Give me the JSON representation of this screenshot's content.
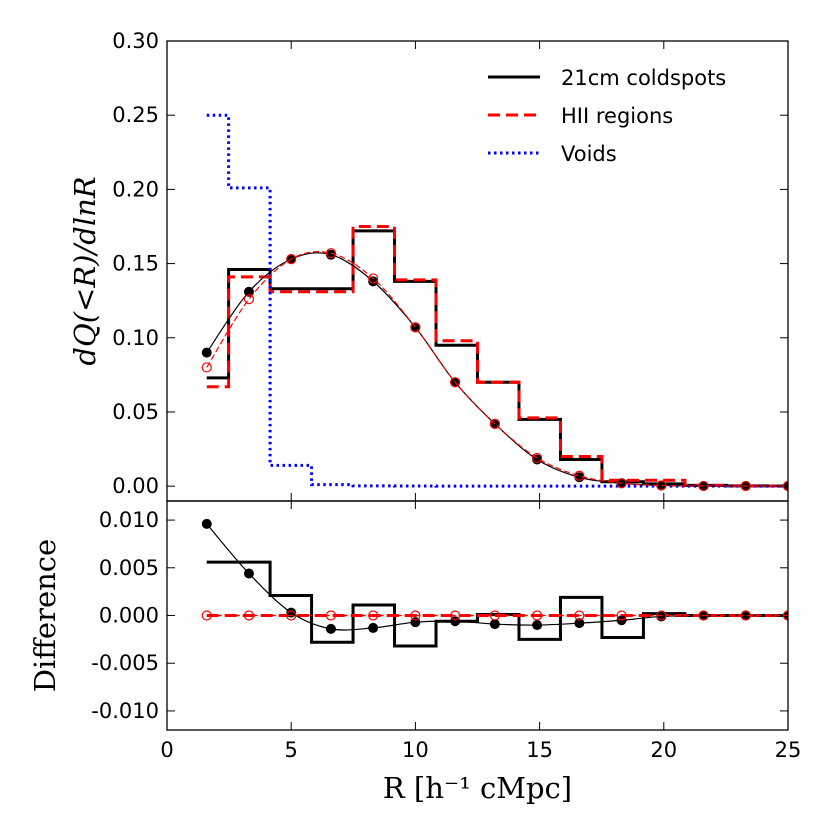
{
  "chart_data": [
    {
      "type": "line",
      "ylabel": "dQ(<R)/dlnR",
      "xlim": [
        0,
        25
      ],
      "ylim": [
        -0.01,
        0.3
      ],
      "yticks": [
        "0.00",
        "0.05",
        "0.10",
        "0.15",
        "0.20",
        "0.25",
        "0.30"
      ],
      "legend": {
        "placement": "top-right"
      },
      "step_series": [
        {
          "name": "21cm coldspots",
          "color": "#000000",
          "style": "solid",
          "edges": [
            1.6,
            2.48,
            4.15,
            5.82,
            7.49,
            9.16,
            10.83,
            12.5,
            14.17,
            15.84,
            17.51,
            19.18,
            20.85,
            22.52,
            24.19,
            25
          ],
          "values": [
            0.073,
            0.146,
            0.133,
            0.133,
            0.172,
            0.138,
            0.095,
            0.07,
            0.045,
            0.018,
            0.003,
            0.0015,
            0.0005,
            0.0002,
            0.0001
          ]
        },
        {
          "name": "HII regions",
          "color": "#ff0000",
          "style": "dashed",
          "edges": [
            1.6,
            2.48,
            4.15,
            5.82,
            7.49,
            9.16,
            10.83,
            12.5,
            14.17,
            15.84,
            17.51,
            19.18,
            20.85,
            22.52,
            24.19,
            25
          ],
          "values": [
            0.067,
            0.141,
            0.131,
            0.131,
            0.175,
            0.139,
            0.098,
            0.07,
            0.046,
            0.02,
            0.004,
            0.004,
            0.0005,
            0.0002,
            0.0001
          ]
        },
        {
          "name": "Voids",
          "color": "#0000ff",
          "style": "dotted",
          "edges": [
            1.6,
            2.48,
            4.15,
            5.82,
            7.49,
            9.16,
            10.83,
            12.5,
            14.17,
            15.84,
            17.51,
            19.18,
            20.85,
            22.52,
            24.19,
            25
          ],
          "values": [
            0.25,
            0.201,
            0.014,
            0.001,
            0.0002,
            0.0001,
            0,
            0,
            0,
            0,
            0,
            0,
            0,
            0,
            0
          ]
        }
      ],
      "point_series": [
        {
          "series": "21cm coldspots",
          "marker": "filled-circle",
          "x": [
            1.6,
            3.3,
            5.0,
            6.6,
            8.3,
            10.0,
            11.6,
            13.2,
            14.9,
            16.6,
            18.3,
            19.9,
            21.6,
            23.3,
            25.0
          ],
          "y": [
            0.09,
            0.131,
            0.153,
            0.156,
            0.138,
            0.107,
            0.07,
            0.042,
            0.018,
            0.006,
            0.002,
            0.0005,
            0.0001,
            0.0001,
            0.0001
          ]
        },
        {
          "series": "HII regions",
          "marker": "open-circle",
          "x": [
            1.6,
            3.3,
            5.0,
            6.6,
            8.3,
            10.0,
            11.6,
            13.2,
            14.9,
            16.6,
            18.3,
            19.9,
            21.6,
            23.3,
            25.0
          ],
          "y": [
            0.08,
            0.126,
            0.153,
            0.157,
            0.14,
            0.107,
            0.07,
            0.042,
            0.019,
            0.007,
            0.002,
            0.0005,
            0.0001,
            0.0001,
            0.0001
          ]
        }
      ]
    },
    {
      "type": "line",
      "xlabel": "R [h⁻¹ cMpc]",
      "ylabel": "Difference",
      "xlim": [
        0,
        25
      ],
      "ylim": [
        -0.012,
        0.012
      ],
      "xticks": [
        "0",
        "5",
        "10",
        "15",
        "20",
        "25"
      ],
      "yticks": [
        "-0.010",
        "-0.005",
        "0.000",
        "0.005",
        "0.010"
      ],
      "step_series": [
        {
          "series": "21cm coldspots",
          "color": "#000000",
          "style": "solid",
          "edges": [
            1.6,
            2.48,
            4.15,
            5.82,
            7.49,
            9.16,
            10.83,
            12.5,
            14.17,
            15.84,
            17.51,
            19.18,
            20.85,
            22.52,
            24.19,
            25
          ],
          "values": [
            0.0056,
            0.0056,
            0.0021,
            -0.0028,
            0.0011,
            -0.0032,
            -0.0006,
            0.0001,
            -0.0025,
            0.0019,
            -0.0023,
            0.0002,
            0.0,
            0.0,
            0.0
          ]
        },
        {
          "series": "HII regions",
          "color": "#ff0000",
          "style": "dashed",
          "edges": [
            1.6,
            25
          ],
          "values": [
            0.0
          ]
        }
      ],
      "point_series": [
        {
          "series": "21cm coldspots",
          "marker": "filled-circle",
          "x": [
            1.6,
            3.3,
            5.0,
            6.6,
            8.3,
            10.0,
            11.6,
            13.2,
            14.9,
            16.6,
            18.3,
            19.9,
            21.6,
            23.3,
            25.0
          ],
          "y": [
            0.0096,
            0.0044,
            0.0003,
            -0.0014,
            -0.0013,
            -0.0007,
            -0.0006,
            -0.0009,
            -0.001,
            -0.0008,
            -0.0005,
            -0.0001,
            0.0,
            0.0,
            0.0
          ]
        },
        {
          "series": "HII regions",
          "marker": "open-circle",
          "x": [
            1.6,
            3.3,
            5.0,
            6.6,
            8.3,
            10.0,
            11.6,
            13.2,
            14.9,
            16.6,
            18.3,
            19.9,
            21.6,
            23.3,
            25.0
          ],
          "y": [
            0,
            0,
            0,
            0,
            0,
            0,
            0,
            0,
            0,
            0,
            0,
            0,
            0,
            0,
            0
          ]
        }
      ]
    }
  ]
}
